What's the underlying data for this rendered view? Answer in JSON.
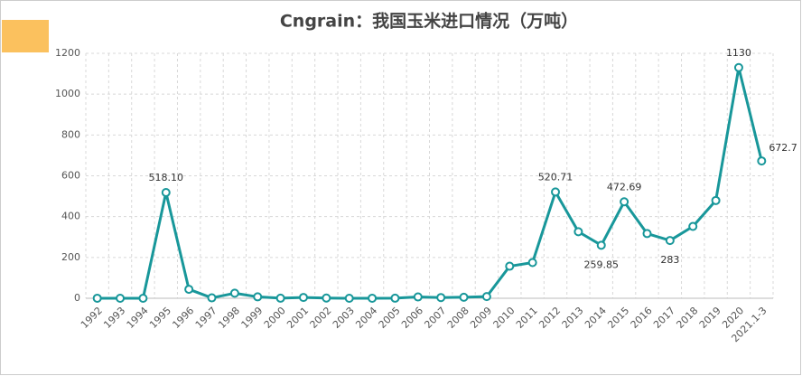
{
  "chart_data": {
    "type": "line",
    "title": "Cngrain：我国玉米进口情况（万吨）",
    "categories": [
      "1992",
      "1993",
      "1994",
      "1995",
      "1996",
      "1997",
      "1998",
      "1999",
      "2000",
      "2001",
      "2002",
      "2003",
      "2004",
      "2005",
      "2006",
      "2007",
      "2008",
      "2009",
      "2010",
      "2011",
      "2012",
      "2013",
      "2014",
      "2015",
      "2016",
      "2017",
      "2018",
      "2019",
      "2020",
      "2021.1-3"
    ],
    "values": [
      0.2,
      0.1,
      0.1,
      518.1,
      44,
      2,
      25,
      7,
      0.3,
      4,
      1,
      0.1,
      0.2,
      0.4,
      6.5,
      3.5,
      5,
      8.4,
      157,
      175,
      520.71,
      326,
      259.85,
      472.69,
      317,
      283,
      352,
      479,
      1130,
      672.7
    ],
    "value_labels": [
      null,
      null,
      null,
      "518.10",
      null,
      null,
      null,
      null,
      null,
      null,
      null,
      null,
      null,
      null,
      null,
      null,
      null,
      null,
      null,
      null,
      "520.71",
      null,
      "259.85",
      "472.69",
      null,
      "283",
      null,
      null,
      "1130",
      "672.7"
    ],
    "color": "#18979a",
    "ylim": [
      0,
      1200
    ],
    "yticks": [
      0,
      200,
      400,
      600,
      800,
      1000,
      1200
    ],
    "grid": true
  }
}
